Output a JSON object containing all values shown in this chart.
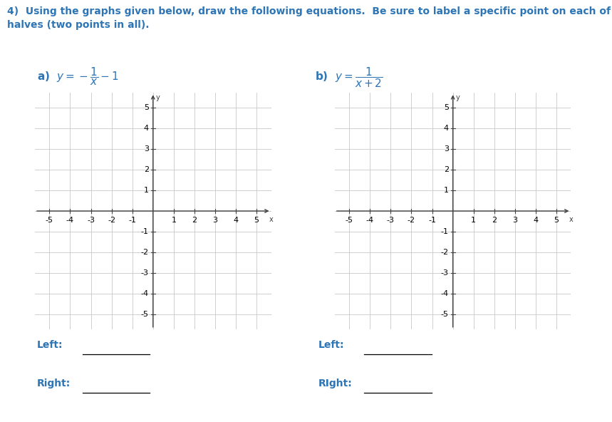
{
  "title_text": "4)  Using the graphs given below, draw the following equations.  Be sure to label a specific point on each of the two\nhalves (two points in all).",
  "title_color": "#2E75B6",
  "background_color": "#ffffff",
  "grid_color": "#c8c8c8",
  "axis_color": "#404040",
  "tick_label_color": "#000000",
  "xlim": [
    -5.7,
    5.7
  ],
  "ylim": [
    -5.7,
    5.7
  ],
  "xticks": [
    -5,
    -4,
    -3,
    -2,
    -1,
    1,
    2,
    3,
    4,
    5
  ],
  "yticks": [
    -5,
    -4,
    -3,
    -2,
    -1,
    1,
    2,
    3,
    4,
    5
  ],
  "left_label_a": "Left:",
  "right_label_a": "Right:",
  "left_label_b": "Left:",
  "right_label_b": "RIght:",
  "label_fontsize": 10,
  "tick_fontsize": 8,
  "eq_fontsize": 11
}
